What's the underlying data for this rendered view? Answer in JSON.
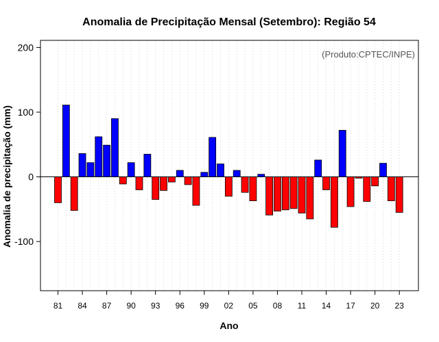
{
  "chart_data": {
    "type": "bar",
    "title": "Anomalia de Precipitação Mensal (Setembro): Região 54",
    "xlabel": "Ano",
    "ylabel": "Anomalia de precipitação (mm)",
    "credit": "(Produto:CPTEC/INPE)",
    "ylim": [
      -176,
      211
    ],
    "yticks": [
      {
        "value": -100,
        "label": "-100"
      },
      {
        "value": 0,
        "label": "0"
      },
      {
        "value": 100,
        "label": "100"
      },
      {
        "value": 200,
        "label": "200"
      }
    ],
    "xticks": [
      {
        "year": 1981,
        "label": "81"
      },
      {
        "year": 1984,
        "label": "84"
      },
      {
        "year": 1987,
        "label": "87"
      },
      {
        "year": 1990,
        "label": "90"
      },
      {
        "year": 1993,
        "label": "93"
      },
      {
        "year": 1996,
        "label": "96"
      },
      {
        "year": 1999,
        "label": "99"
      },
      {
        "year": 2002,
        "label": "02"
      },
      {
        "year": 2005,
        "label": "05"
      },
      {
        "year": 2008,
        "label": "08"
      },
      {
        "year": 2011,
        "label": "11"
      },
      {
        "year": 2014,
        "label": "14"
      },
      {
        "year": 2017,
        "label": "17"
      },
      {
        "year": 2020,
        "label": "20"
      },
      {
        "year": 2023,
        "label": "23"
      }
    ],
    "grid": "vertical-dotted",
    "colors": {
      "positive": "#0000ff",
      "negative": "#ff0000",
      "outline": "#000000",
      "grid": "#d3d3d3"
    },
    "categories": [
      1981,
      1982,
      1983,
      1984,
      1985,
      1986,
      1987,
      1988,
      1989,
      1990,
      1991,
      1992,
      1993,
      1994,
      1995,
      1996,
      1997,
      1998,
      1999,
      2000,
      2001,
      2002,
      2003,
      2004,
      2005,
      2006,
      2007,
      2008,
      2009,
      2010,
      2011,
      2012,
      2013,
      2014,
      2015,
      2016,
      2017,
      2018,
      2019,
      2020,
      2021,
      2022,
      2023
    ],
    "values": [
      -40,
      111,
      -52,
      36,
      22,
      62,
      49,
      90,
      -11,
      22,
      -20,
      35,
      -35,
      -21,
      -8,
      10,
      -12,
      -44,
      7,
      61,
      20,
      -30,
      10,
      -24,
      -37,
      4,
      -59,
      -53,
      -51,
      -49,
      -56,
      -65,
      26,
      -20,
      -78,
      72,
      -46,
      -2,
      -38,
      -14,
      21,
      -37,
      -55
    ]
  }
}
